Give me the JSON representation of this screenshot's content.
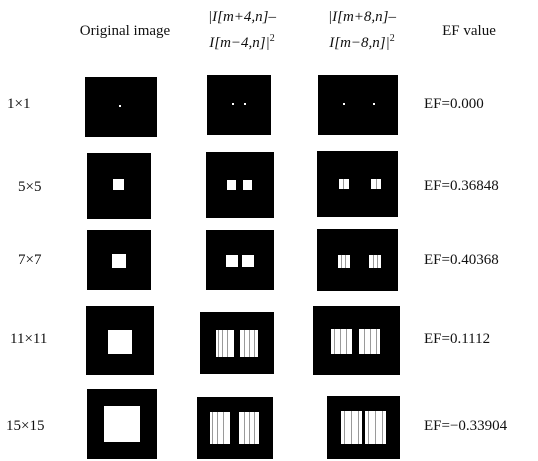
{
  "headers": {
    "original": "Original image",
    "diff4": {
      "line1": "|I[m+4,n]–",
      "line2": "I[m−4,n]|",
      "sup": "2"
    },
    "diff8": {
      "line1": "|I[m+8,n]–",
      "line2": "I[m−8,n]|",
      "sup": "2"
    },
    "ef": "EF value"
  },
  "rows": [
    {
      "size": "1×1",
      "ef": "EF=0.000"
    },
    {
      "size": "5×5",
      "ef": "EF=0.36848"
    },
    {
      "size": "7×7",
      "ef": "EF=0.40368"
    },
    {
      "size": "11×11",
      "ef": "EF=0.1112"
    },
    {
      "size": "15×15",
      "ef": "EF=−0.33904"
    }
  ]
}
